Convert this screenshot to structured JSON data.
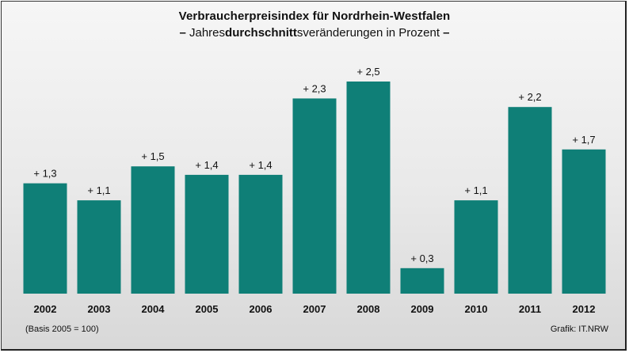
{
  "chart_data": {
    "type": "bar",
    "title": "Verbraucherpreisindex für Nordrhein-Westfalen",
    "subtitle_parts": {
      "dash_left": "–",
      "pre": "Jahres",
      "bold": "durchschnitt",
      "post": "sveränderungen in Prozent",
      "dash_right": "–"
    },
    "categories": [
      "2002",
      "2003",
      "2004",
      "2005",
      "2006",
      "2007",
      "2008",
      "2009",
      "2010",
      "2011",
      "2012"
    ],
    "values": [
      1.3,
      1.1,
      1.5,
      1.4,
      1.4,
      2.3,
      2.5,
      0.3,
      1.1,
      2.2,
      1.7
    ],
    "data_labels": [
      "+ 1,3",
      "+ 1,1",
      "+ 1,5",
      "+ 1,4",
      "+ 1,4",
      "+ 2,3",
      "+ 2,5",
      "+ 0,3",
      "+ 1,1",
      "+ 2,2",
      "+ 1,7"
    ],
    "ylim": [
      0,
      2.5
    ],
    "grid": false,
    "legend": "none",
    "bar_color": "#0f7f77",
    "footnote_left": "(Basis 2005 = 100)",
    "footnote_right": "Grafik: IT.NRW"
  }
}
